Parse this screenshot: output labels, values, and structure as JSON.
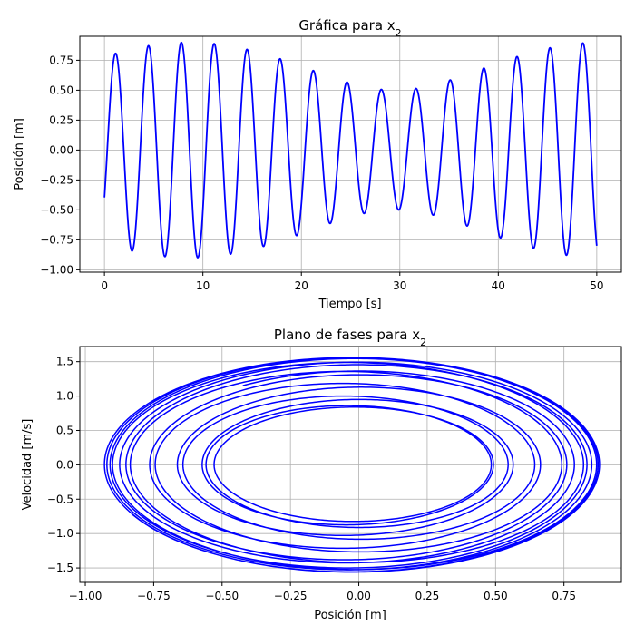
{
  "chart_data": [
    {
      "type": "line",
      "title": "Gráfica para x",
      "title_subscript": "2",
      "xlabel": "Tiempo [s]",
      "ylabel": "Posición [m]",
      "xlim": [
        -2.5,
        52.5
      ],
      "ylim": [
        -1.02,
        0.95
      ],
      "xticks": [
        0,
        10,
        20,
        30,
        40,
        50
      ],
      "xtick_labels": [
        "0",
        "10",
        "20",
        "30",
        "40",
        "50"
      ],
      "yticks": [
        -1.0,
        -0.75,
        -0.5,
        -0.25,
        0.0,
        0.25,
        0.5,
        0.75
      ],
      "ytick_labels": [
        "−1.00",
        "−0.75",
        "−0.50",
        "−0.25",
        "0.00",
        "0.25",
        "0.50",
        "0.75"
      ],
      "grid": true,
      "color": "#0000ff",
      "series": [
        {
          "x": [
            0,
            50
          ],
          "model": {
            "modes": [
              {
                "amplitude": 0.2,
                "omega": 2.0,
                "phase": -3.1416
              },
              {
                "amplitude": 0.7,
                "omega": 1.85,
                "phase": -1.8546
              }
            ]
          },
          "key_points": [
            {
              "x": 0.0,
              "y": -0.5
            },
            {
              "x": 1.5,
              "y": 0.87
            },
            {
              "x": 3.0,
              "y": -0.72
            },
            {
              "x": 4.5,
              "y": 0.56
            },
            {
              "x": 6.1,
              "y": -0.93
            },
            {
              "x": 7.7,
              "y": 0.56
            },
            {
              "x": 9.2,
              "y": -0.71
            },
            {
              "x": 10.7,
              "y": 0.87
            },
            {
              "x": 12.2,
              "y": -0.5
            },
            {
              "x": 13.8,
              "y": 0.87
            },
            {
              "x": 15.3,
              "y": -0.72
            },
            {
              "x": 16.8,
              "y": 0.56
            },
            {
              "x": 18.4,
              "y": -0.93
            },
            {
              "x": 20.0,
              "y": 0.56
            },
            {
              "x": 21.5,
              "y": -0.71
            },
            {
              "x": 23.0,
              "y": 0.87
            },
            {
              "x": 24.5,
              "y": -0.5
            },
            {
              "x": 26.1,
              "y": 0.87
            },
            {
              "x": 27.6,
              "y": -0.73
            },
            {
              "x": 29.1,
              "y": 0.56
            },
            {
              "x": 30.6,
              "y": -0.93
            },
            {
              "x": 32.2,
              "y": 0.57
            },
            {
              "x": 33.7,
              "y": -0.71
            },
            {
              "x": 35.2,
              "y": 0.88
            },
            {
              "x": 36.8,
              "y": -0.5
            },
            {
              "x": 38.3,
              "y": 0.87
            },
            {
              "x": 39.8,
              "y": -0.73
            },
            {
              "x": 41.3,
              "y": 0.56
            },
            {
              "x": 42.9,
              "y": -0.93
            },
            {
              "x": 44.4,
              "y": 0.57
            },
            {
              "x": 45.9,
              "y": -0.71
            },
            {
              "x": 47.5,
              "y": 0.88
            },
            {
              "x": 49.0,
              "y": -0.5
            },
            {
              "x": 50.0,
              "y": 0.62
            }
          ]
        }
      ]
    },
    {
      "type": "line",
      "title": "Plano de fases para x",
      "title_subscript": "2",
      "xlabel": "Posición [m]",
      "ylabel": "Velocidad [m/s]",
      "xlim": [
        -1.02,
        0.96
      ],
      "ylim": [
        -1.71,
        1.72
      ],
      "xticks": [
        -1.0,
        -0.75,
        -0.5,
        -0.25,
        0.0,
        0.25,
        0.5,
        0.75
      ],
      "xtick_labels": [
        "−1.00",
        "−0.75",
        "−0.50",
        "−0.25",
        "0.00",
        "0.25",
        "0.50",
        "0.75"
      ],
      "yticks": [
        -1.5,
        -1.0,
        -0.5,
        0.0,
        0.5,
        1.0,
        1.5
      ],
      "ytick_labels": [
        "−1.5",
        "−1.0",
        "−0.5",
        "0.0",
        "0.5",
        "1.0",
        "1.5"
      ],
      "grid": true,
      "color": "#0000ff",
      "series": [
        {
          "x_range": [
            -0.93,
            0.88
          ],
          "y_range": [
            -1.56,
            1.56
          ],
          "t_range": [
            0,
            50
          ],
          "model": {
            "modes": [
              {
                "amplitude": 0.2,
                "omega": 2.0,
                "phase": -3.1416
              },
              {
                "amplitude": 0.7,
                "omega": 1.85,
                "phase": -1.8546
              }
            ]
          }
        }
      ]
    }
  ]
}
